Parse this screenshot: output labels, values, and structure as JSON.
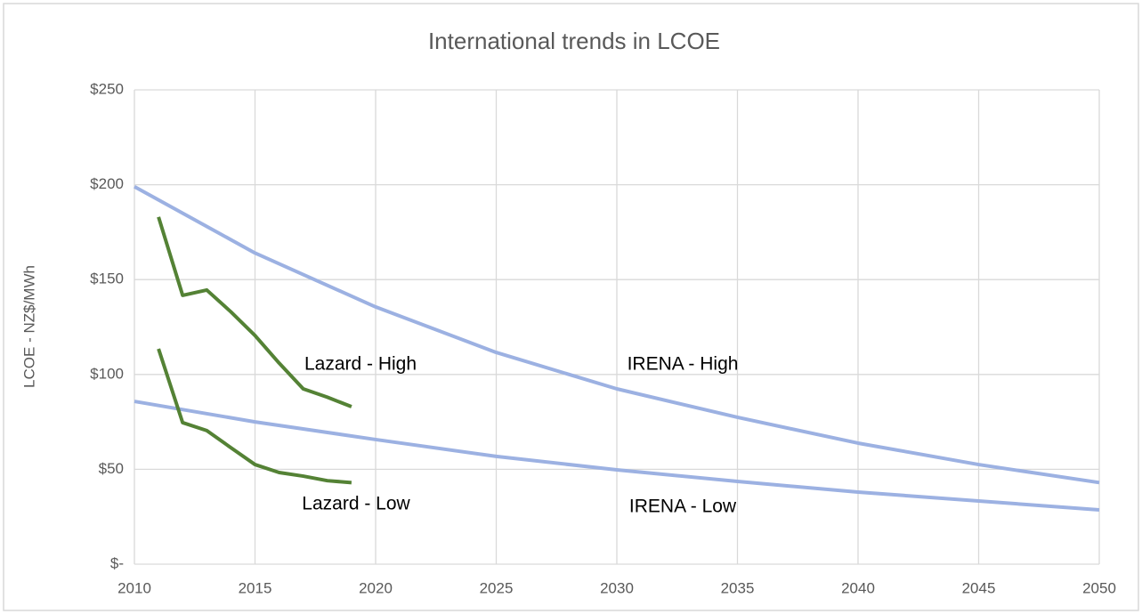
{
  "chart_data": {
    "type": "line",
    "title": "International trends in LCOE",
    "y_label": "LCOE - NZ$/MWh",
    "xlim": [
      2010,
      2050
    ],
    "xticks": [
      2010,
      2015,
      2020,
      2025,
      2030,
      2035,
      2040,
      2045,
      2050
    ],
    "ylim": [
      0,
      250
    ],
    "yticks": [
      {
        "value": 0,
        "label": "$-"
      },
      {
        "value": 50,
        "label": "$50"
      },
      {
        "value": 100,
        "label": "$100"
      },
      {
        "value": 150,
        "label": "$150"
      },
      {
        "value": 200,
        "label": "$200"
      },
      {
        "value": 250,
        "label": "$250"
      }
    ],
    "grid": true,
    "series": [
      {
        "name": "IRENA - High",
        "color": "#9cb1e2",
        "x": [
          2010,
          2015,
          2020,
          2025,
          2030,
          2035,
          2040,
          2045,
          2050
        ],
        "values": [
          199,
          164,
          135.6,
          111.6,
          92.4,
          77.4,
          63.8,
          52.5,
          43
        ]
      },
      {
        "name": "IRENA - Low",
        "color": "#9cb1e2",
        "x": [
          2010,
          2015,
          2020,
          2025,
          2030,
          2035,
          2040,
          2045,
          2050
        ],
        "values": [
          85.8,
          75,
          65.7,
          56.8,
          49.7,
          43.6,
          38,
          33.3,
          28.6
        ]
      },
      {
        "name": "Lazard - High",
        "color": "#548235",
        "x": [
          2011,
          2012,
          2013,
          2014,
          2015,
          2016,
          2017,
          2018,
          2019
        ],
        "values": [
          183,
          141.7,
          144.5,
          133,
          120.5,
          106,
          92.4,
          88,
          83
        ]
      },
      {
        "name": "Lazard - Low",
        "color": "#548235",
        "x": [
          2011,
          2012,
          2013,
          2014,
          2015,
          2016,
          2017,
          2018,
          2019
        ],
        "values": [
          113.5,
          74.6,
          70.4,
          61.4,
          52.5,
          48.3,
          46.4,
          44,
          43
        ]
      }
    ]
  }
}
